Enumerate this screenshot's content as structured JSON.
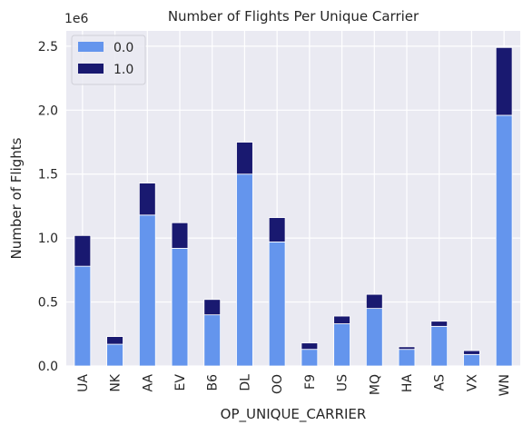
{
  "chart_data": {
    "type": "bar",
    "stacked": true,
    "title": "Number of Flights Per Unique Carrier",
    "xlabel": "OP_UNIQUE_CARRIER",
    "ylabel": "Number of Flights",
    "y_offset_label": "1e6",
    "ylim": [
      0,
      2.62
    ],
    "y_ticks": [
      "0.0",
      "0.5",
      "1.0",
      "1.5",
      "2.0",
      "2.5"
    ],
    "y_tick_values": [
      0,
      0.5,
      1.0,
      1.5,
      2.0,
      2.5
    ],
    "categories": [
      "UA",
      "NK",
      "AA",
      "EV",
      "B6",
      "DL",
      "OO",
      "F9",
      "US",
      "MQ",
      "HA",
      "AS",
      "VX",
      "WN"
    ],
    "series": [
      {
        "name": "0.0",
        "color": "#6495ED",
        "values": [
          0.78,
          0.17,
          1.18,
          0.92,
          0.4,
          1.5,
          0.97,
          0.13,
          0.33,
          0.45,
          0.13,
          0.31,
          0.09,
          1.96
        ]
      },
      {
        "name": "1.0",
        "color": "#191970",
        "values": [
          0.24,
          0.06,
          0.25,
          0.2,
          0.12,
          0.25,
          0.19,
          0.05,
          0.06,
          0.11,
          0.02,
          0.04,
          0.03,
          0.53
        ]
      }
    ],
    "grid": true,
    "legend_position": "top-left",
    "background_color": "#EAEAF2",
    "grid_color": "#FFFFFF"
  }
}
